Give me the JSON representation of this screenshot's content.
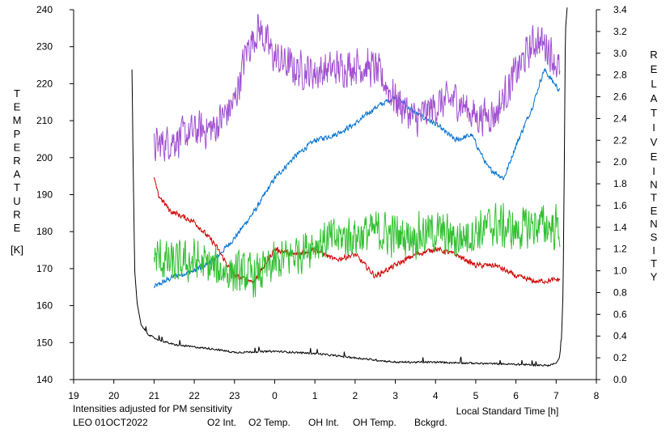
{
  "chart_data": {
    "type": "line",
    "title": "",
    "xlabel": "Local Standard Time [h]",
    "ylabel_left": "TEMPERATURE [K]",
    "ylabel_left_letters": [
      "T",
      "E",
      "M",
      "P",
      "E",
      "R",
      "A",
      "T",
      "U",
      "R",
      "E"
    ],
    "ylabel_left_unit": "[K]",
    "ylabel_right": "RELATIVE INTENSITY",
    "ylabel_right_word1": [
      "R",
      "E",
      "L",
      "A",
      "T",
      "I",
      "V",
      "E"
    ],
    "ylabel_right_word2": [
      "I",
      "N",
      "T",
      "E",
      "N",
      "S",
      "I",
      "T",
      "Y"
    ],
    "note": "Intensities adjusted for PM sensitivity",
    "station": "LEO 01OCT2022",
    "x_range": [
      19,
      32
    ],
    "x_ticks": [
      "19",
      "20",
      "21",
      "22",
      "23",
      "0",
      "1",
      "2",
      "3",
      "4",
      "5",
      "6",
      "7",
      "8"
    ],
    "y_left_range": [
      140,
      240
    ],
    "y_left_ticks": [
      "140",
      "150",
      "160",
      "170",
      "180",
      "190",
      "200",
      "210",
      "220",
      "230",
      "240"
    ],
    "y_right_range": [
      0.0,
      3.4
    ],
    "y_right_ticks": [
      "0.0",
      "0.2",
      "0.4",
      "0.6",
      "0.8",
      "1.0",
      "1.2",
      "1.4",
      "1.6",
      "1.8",
      "2.0",
      "2.2",
      "2.4",
      "2.6",
      "2.8",
      "3.0",
      "3.2",
      "3.4"
    ],
    "grid": false,
    "legend": "bottom",
    "series": [
      {
        "name": "O2 Int.",
        "axis": "right",
        "color": "#0070d0",
        "noise": 0.03,
        "x": [
          21.0,
          21.5,
          22.0,
          22.5,
          23.0,
          23.5,
          24.0,
          24.5,
          25.0,
          25.5,
          26.0,
          26.5,
          27.0,
          27.5,
          28.0,
          28.5,
          28.9,
          29.3,
          29.7,
          30.0,
          30.4,
          30.7,
          31.1
        ],
        "values": [
          0.85,
          0.95,
          1.0,
          1.1,
          1.3,
          1.55,
          1.85,
          2.05,
          2.2,
          2.25,
          2.35,
          2.5,
          2.6,
          2.45,
          2.35,
          2.2,
          2.25,
          1.95,
          1.85,
          2.15,
          2.5,
          2.85,
          2.65
        ]
      },
      {
        "name": "O2 Temp.",
        "axis": "left",
        "color": "#a050d0",
        "noise": 6,
        "x": [
          21.0,
          21.5,
          22.0,
          22.5,
          23.0,
          23.3,
          23.6,
          24.0,
          24.5,
          25.0,
          25.5,
          26.0,
          26.5,
          27.0,
          27.5,
          28.0,
          28.5,
          29.0,
          29.5,
          30.0,
          30.5,
          30.8,
          31.1
        ],
        "values": [
          203,
          205,
          207,
          208,
          215,
          229,
          235,
          227,
          224,
          223,
          224,
          225,
          224,
          216,
          210,
          214,
          216,
          211,
          212,
          223,
          232,
          230,
          223
        ]
      },
      {
        "name": "OH Int.",
        "axis": "right",
        "color": "#d00000",
        "noise": 0.03,
        "x": [
          21.0,
          21.1,
          21.4,
          22.0,
          22.5,
          23.0,
          23.5,
          24.0,
          24.5,
          25.0,
          25.5,
          26.0,
          26.5,
          27.0,
          27.5,
          28.0,
          28.5,
          29.0,
          29.5,
          30.0,
          30.5,
          31.1
        ],
        "values": [
          1.85,
          1.7,
          1.55,
          1.45,
          1.25,
          0.95,
          0.9,
          1.2,
          1.15,
          1.2,
          1.1,
          1.15,
          0.95,
          1.05,
          1.15,
          1.2,
          1.15,
          1.05,
          1.05,
          0.95,
          0.9,
          0.92
        ]
      },
      {
        "name": "OH Temp.",
        "axis": "left",
        "color": "#30c030",
        "noise": 7,
        "x": [
          21.0,
          21.5,
          22.0,
          22.5,
          23.0,
          23.5,
          24.0,
          24.5,
          25.0,
          25.5,
          26.0,
          26.5,
          27.0,
          27.5,
          28.0,
          28.5,
          29.0,
          29.5,
          30.0,
          30.5,
          31.1
        ],
        "values": [
          173,
          171,
          172,
          170,
          169,
          168,
          171,
          174,
          177,
          178,
          179,
          180,
          179,
          179,
          180,
          178,
          180,
          182,
          180,
          182,
          181
        ]
      },
      {
        "name": "Bckgrd.",
        "axis": "right",
        "color": "#000000",
        "noise": 0.01,
        "x": [
          20.45,
          20.48,
          20.52,
          20.58,
          20.68,
          20.85,
          21.0,
          21.5,
          22.0,
          22.5,
          23.0,
          24.0,
          25.0,
          26.0,
          27.0,
          28.0,
          29.0,
          30.0,
          30.8,
          31.0,
          31.08,
          31.13,
          31.17,
          31.2,
          31.23,
          31.28
        ],
        "values": [
          2.85,
          2.0,
          1.0,
          0.7,
          0.5,
          0.42,
          0.38,
          0.32,
          0.3,
          0.28,
          0.25,
          0.26,
          0.24,
          0.2,
          0.16,
          0.16,
          0.15,
          0.14,
          0.13,
          0.15,
          0.2,
          0.35,
          0.8,
          1.8,
          3.2,
          3.45
        ]
      }
    ]
  }
}
